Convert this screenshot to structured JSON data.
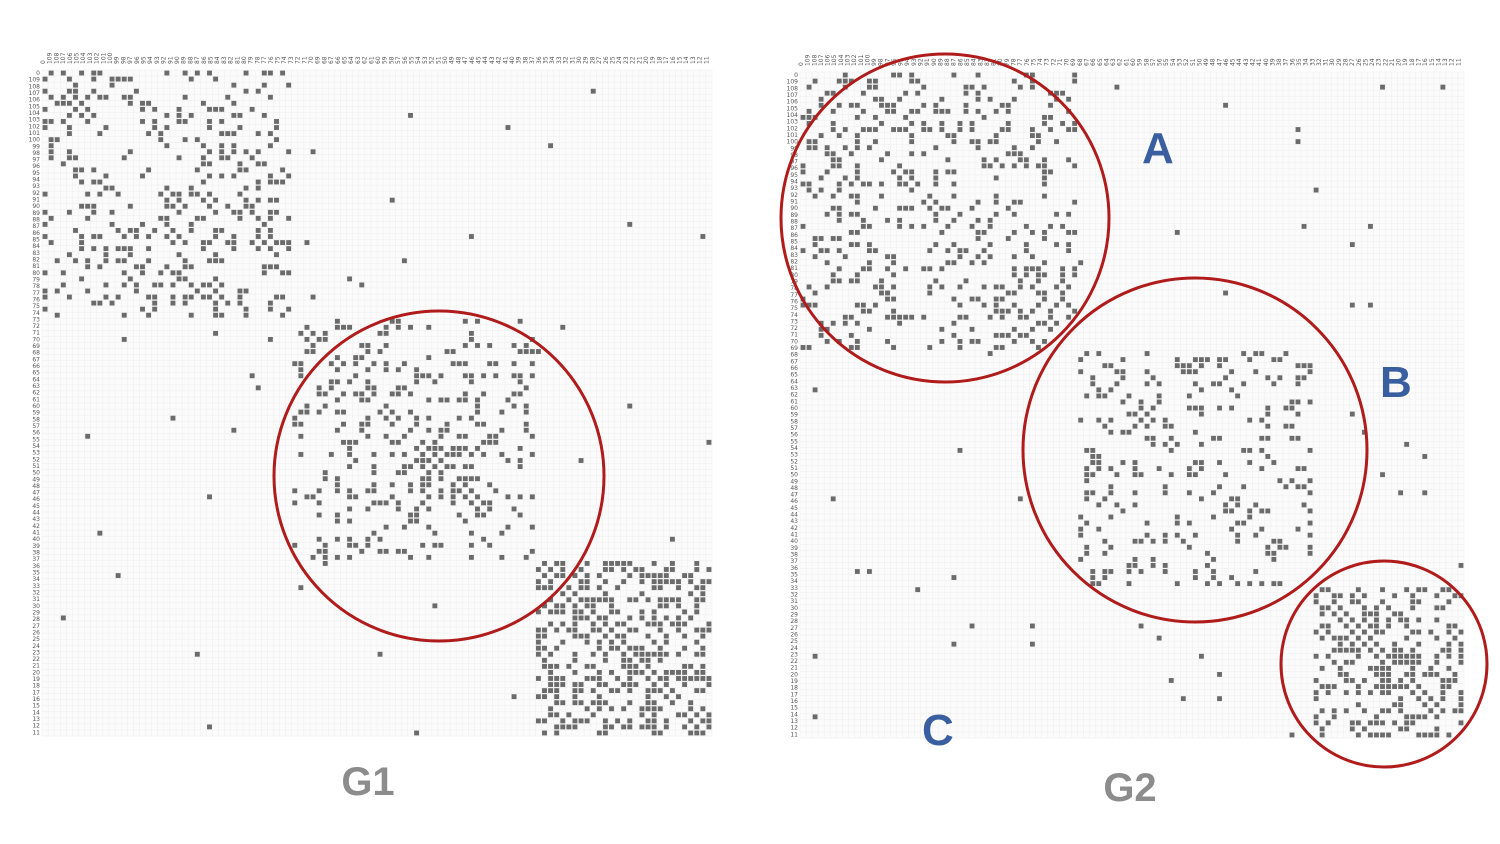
{
  "chart_data": [
    {
      "type": "heatmap",
      "title": "G1",
      "matrix_size": 110,
      "tick_labels": [
        "0",
        "109",
        "108",
        "107",
        "106",
        "105",
        "104",
        "103",
        "102",
        "101",
        "100",
        "99",
        "98",
        "97",
        "96",
        "95",
        "94",
        "93",
        "92",
        "91",
        "90",
        "89",
        "88",
        "87",
        "86",
        "85",
        "84",
        "83",
        "82",
        "81",
        "80",
        "79",
        "78",
        "77",
        "76",
        "75",
        "74",
        "73",
        "72",
        "71",
        "70",
        "69",
        "68",
        "67",
        "66",
        "65",
        "64",
        "63",
        "62",
        "61",
        "60",
        "59",
        "58",
        "57",
        "56",
        "55",
        "54",
        "53",
        "52",
        "51",
        "50",
        "49",
        "48",
        "47",
        "46",
        "45",
        "44",
        "43",
        "42",
        "41",
        "40",
        "39",
        "38",
        "37",
        "36",
        "35",
        "34",
        "33",
        "32",
        "31",
        "30",
        "29",
        "28",
        "27",
        "26",
        "25",
        "24",
        "23",
        "22",
        "21",
        "20",
        "19",
        "18",
        "17",
        "16",
        "15",
        "14",
        "13",
        "12",
        "11"
      ],
      "blocks": [
        {
          "row_range": [
            0,
            40
          ],
          "col_range": [
            0,
            40
          ],
          "density": 0.22
        },
        {
          "row_range": [
            41,
            80
          ],
          "col_range": [
            41,
            80
          ],
          "density": 0.2
        },
        {
          "row_range": [
            81,
            109
          ],
          "col_range": [
            81,
            109
          ],
          "density": 0.42
        }
      ],
      "highlighted_blocks": [
        {
          "row_range": [
            41,
            80
          ],
          "col_range": [
            41,
            80
          ],
          "label": ""
        }
      ],
      "background_density": 0.006,
      "seed": 11
    },
    {
      "type": "heatmap",
      "title": "G2",
      "matrix_size": 110,
      "tick_labels": [
        "0",
        "109",
        "108",
        "107",
        "106",
        "105",
        "104",
        "103",
        "102",
        "101",
        "100",
        "99",
        "98",
        "97",
        "96",
        "95",
        "94",
        "93",
        "92",
        "91",
        "90",
        "89",
        "88",
        "87",
        "86",
        "85",
        "84",
        "83",
        "82",
        "81",
        "80",
        "79",
        "78",
        "77",
        "76",
        "75",
        "74",
        "73",
        "72",
        "71",
        "70",
        "69",
        "68",
        "67",
        "66",
        "65",
        "64",
        "63",
        "62",
        "61",
        "60",
        "59",
        "58",
        "57",
        "56",
        "55",
        "54",
        "53",
        "52",
        "51",
        "50",
        "49",
        "48",
        "47",
        "46",
        "45",
        "44",
        "43",
        "42",
        "41",
        "40",
        "39",
        "38",
        "37",
        "36",
        "35",
        "34",
        "33",
        "32",
        "31",
        "30",
        "29",
        "28",
        "27",
        "26",
        "25",
        "24",
        "23",
        "22",
        "21",
        "20",
        "19",
        "18",
        "17",
        "16",
        "15",
        "14",
        "13",
        "12",
        "11"
      ],
      "blocks": [
        {
          "row_range": [
            0,
            45
          ],
          "col_range": [
            0,
            45
          ],
          "density": 0.22
        },
        {
          "row_range": [
            46,
            84
          ],
          "col_range": [
            46,
            84
          ],
          "density": 0.2
        },
        {
          "row_range": [
            85,
            109
          ],
          "col_range": [
            85,
            109
          ],
          "density": 0.38
        }
      ],
      "highlighted_blocks": [
        {
          "row_range": [
            0,
            45
          ],
          "col_range": [
            0,
            45
          ],
          "label": "A"
        },
        {
          "row_range": [
            46,
            84
          ],
          "col_range": [
            46,
            84
          ],
          "label": "B"
        },
        {
          "row_range": [
            85,
            109
          ],
          "col_range": [
            85,
            109
          ],
          "label": ""
        }
      ],
      "extra_labels": [
        "C"
      ],
      "background_density": 0.006,
      "seed": 29
    }
  ],
  "colors": {
    "cell": "#6b6b6b",
    "circle": "#b01c1c",
    "cluster_label": "#3a5fa0",
    "caption": "#8c8c8c",
    "panel_bg": "#fbfbfb",
    "grid": "#eeeeee"
  }
}
